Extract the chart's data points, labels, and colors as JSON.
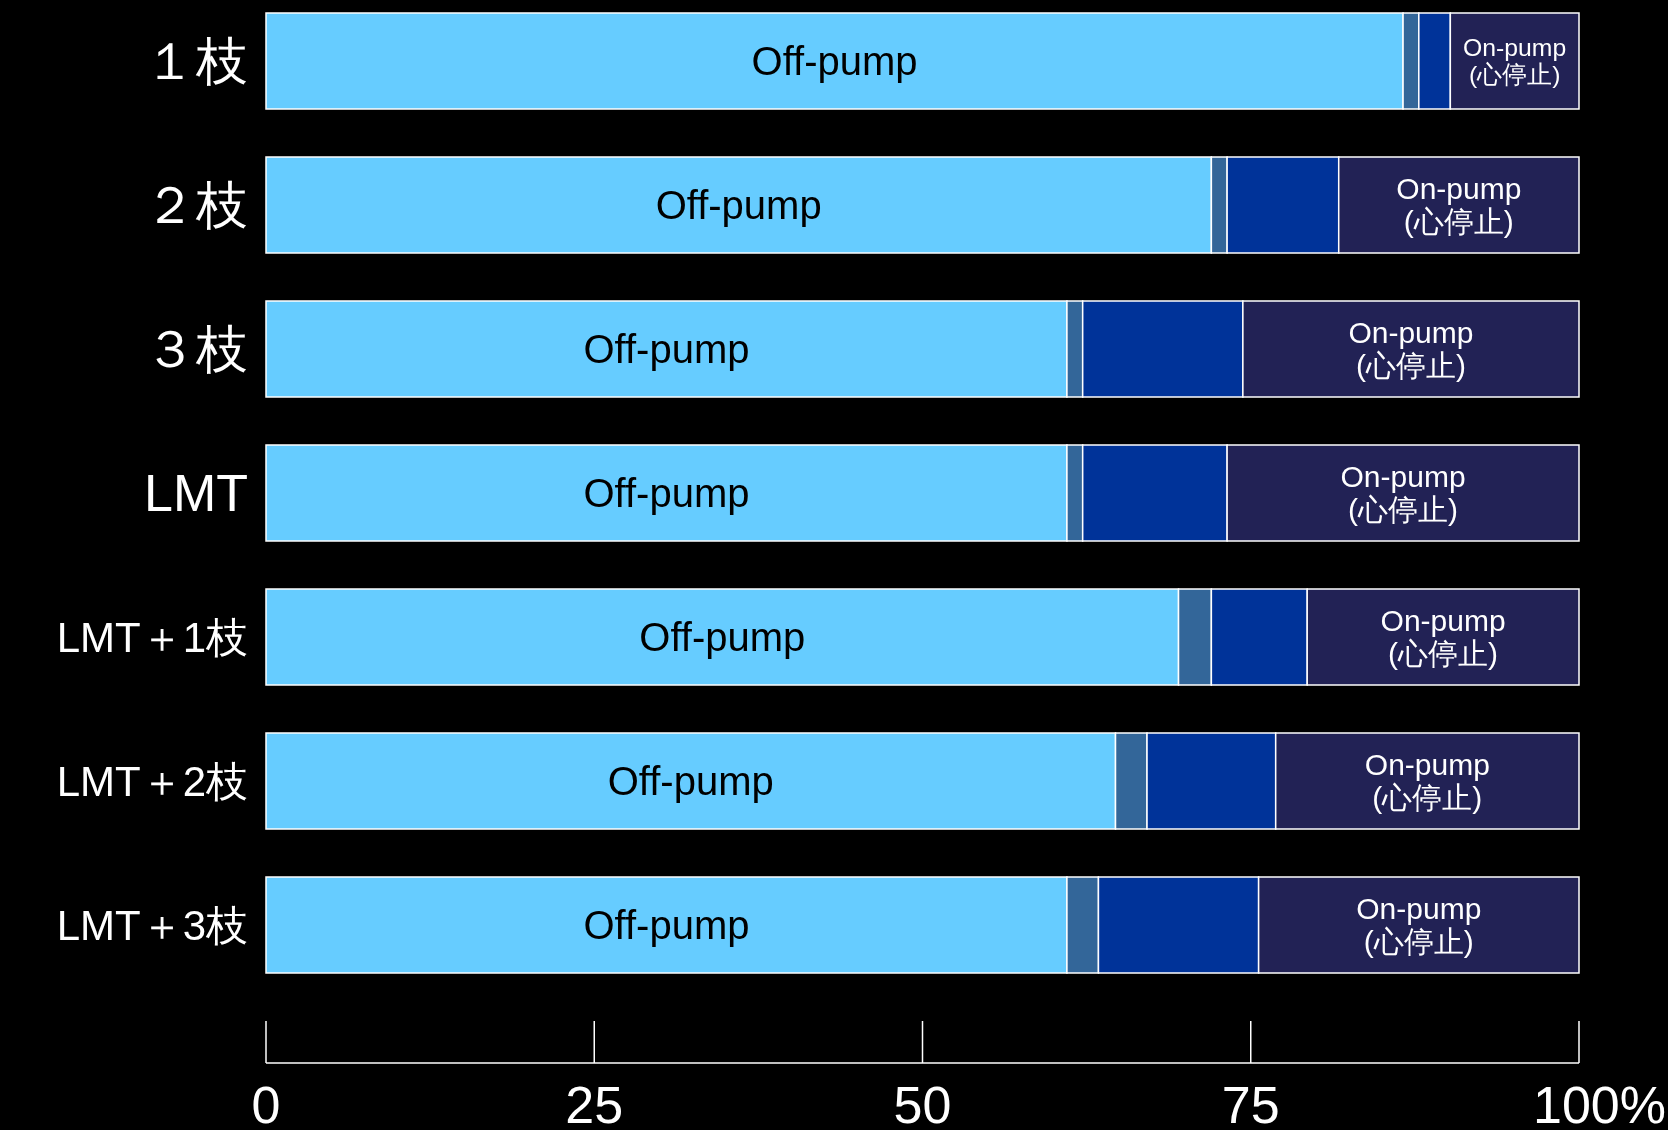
{
  "chart_data": {
    "type": "bar",
    "orientation": "horizontal",
    "stacked": true,
    "categories": [
      "１枝",
      "２枝",
      "３枝",
      "LMT",
      "LMT＋1枝",
      "LMT＋2枝",
      "LMT＋3枝"
    ],
    "series": [
      {
        "name": "Off-pump",
        "color": "#66ccff",
        "values": [
          86.6,
          72.0,
          61.0,
          61.0,
          69.5,
          64.7,
          61.0
        ]
      },
      {
        "color": "#336699",
        "values": [
          1.2,
          1.2,
          1.2,
          1.2,
          2.5,
          2.4,
          2.4
        ]
      },
      {
        "color": "#003399",
        "values": [
          2.4,
          8.5,
          12.2,
          11.0,
          7.3,
          9.8,
          12.2
        ]
      },
      {
        "name": "On-pump\n(心停止)",
        "color": "#222255",
        "values": [
          9.8,
          18.3,
          25.6,
          26.8,
          20.7,
          23.1,
          24.4
        ]
      }
    ],
    "xlim": [
      0,
      100
    ],
    "xticks": [
      0,
      25,
      50,
      75,
      {
        "value": 100,
        "label": "100%"
      }
    ]
  }
}
